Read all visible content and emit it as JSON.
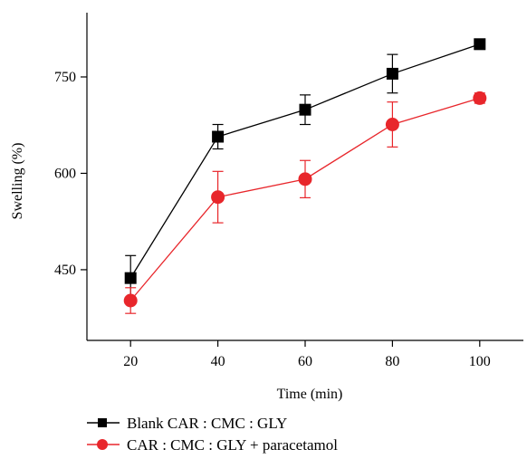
{
  "chart_data": {
    "type": "line",
    "xlabel": "Time (min)",
    "ylabel": "Swelling (%)",
    "x": [
      20,
      40,
      60,
      80,
      100
    ],
    "xticks": [
      "20",
      "40",
      "60",
      "80",
      "100"
    ],
    "yticks": [
      "450",
      "600",
      "750"
    ],
    "xlim": [
      10,
      110
    ],
    "ylim": [
      340,
      850
    ],
    "grid": false,
    "legend_position": "bottom-left",
    "series": [
      {
        "name": "Blank CAR : CMC : GLY",
        "color": "#000000",
        "marker": "square",
        "values": [
          437,
          657,
          699,
          755,
          801
        ],
        "errors": [
          35,
          19,
          23,
          30,
          8
        ]
      },
      {
        "name": "CAR : CMC : GLY + paracetamol",
        "color": "#e8262b",
        "marker": "circle",
        "values": [
          402,
          563,
          591,
          676,
          717
        ],
        "errors": [
          20,
          40,
          29,
          35,
          8
        ]
      }
    ]
  }
}
